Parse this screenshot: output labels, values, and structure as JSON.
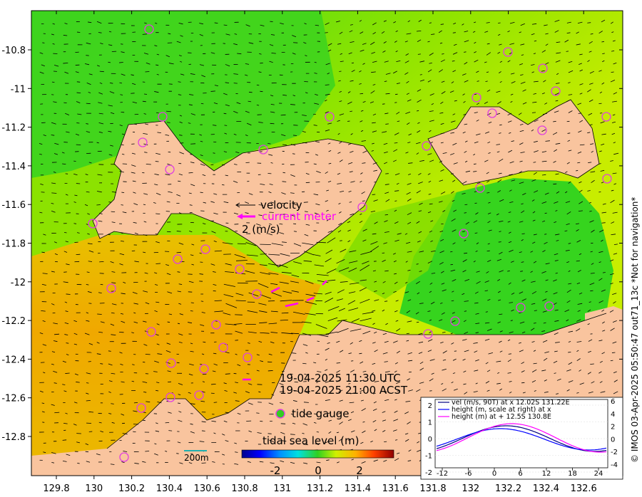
{
  "map": {
    "lon_ticks": [
      "129.8",
      "130",
      "130.2",
      "130.4",
      "130.6",
      "130.8",
      "131",
      "131.2",
      "131.4",
      "131.6",
      "131.8",
      "132",
      "132.2",
      "132.4",
      "132.6"
    ],
    "lat_ticks": [
      "-10.8",
      "-11",
      "-11.2",
      "-11.4",
      "-11.6",
      "-11.8",
      "-12",
      "-12.2",
      "-12.4",
      "-12.6",
      "-12.8"
    ],
    "legend": {
      "velocity_label": "velocity",
      "current_meter_label": "current meter",
      "scale_label": "2 (m/s)",
      "tide_gauge_label": "tide gauge"
    },
    "time_utc": "19-04-2025 11:30 UTC",
    "time_acst": "19-04-2025 21:00 ACST",
    "colorbar": {
      "title": "tidal sea level (m)",
      "ticks": [
        "-2",
        "0",
        "2"
      ]
    },
    "scale_bar_label": "200m",
    "side_caption": "© IMOS 03-Apr-2025 05:50:47 out71_13c  *Not for navigation*",
    "colors": {
      "land": "#f9c49e",
      "sea_green": "#33d21e",
      "sea_yellow": "#c8f000",
      "sea_orange": "#f0a800",
      "tide_marker": "#e040e0",
      "current_meter": "#ff00ff"
    }
  },
  "inset": {
    "legend_lines": [
      "vel (m/s, 90T) at x 12.02S 131.22E",
      "height (m, scale at right) at x",
      "height (m) at + 12.5S 130.8E"
    ],
    "x_ticks": [
      "-12",
      "-6",
      "0",
      "6",
      "12",
      "18",
      "24"
    ],
    "y_left_ticks": [
      "2",
      "1",
      "0",
      "-1",
      "-2"
    ],
    "y_right_ticks": [
      "6",
      "4",
      "2",
      "0",
      "-2",
      "-4"
    ],
    "colors": {
      "vel": "#000080",
      "height_x": "#0000ff",
      "height_plus": "#ff00ff"
    }
  }
}
